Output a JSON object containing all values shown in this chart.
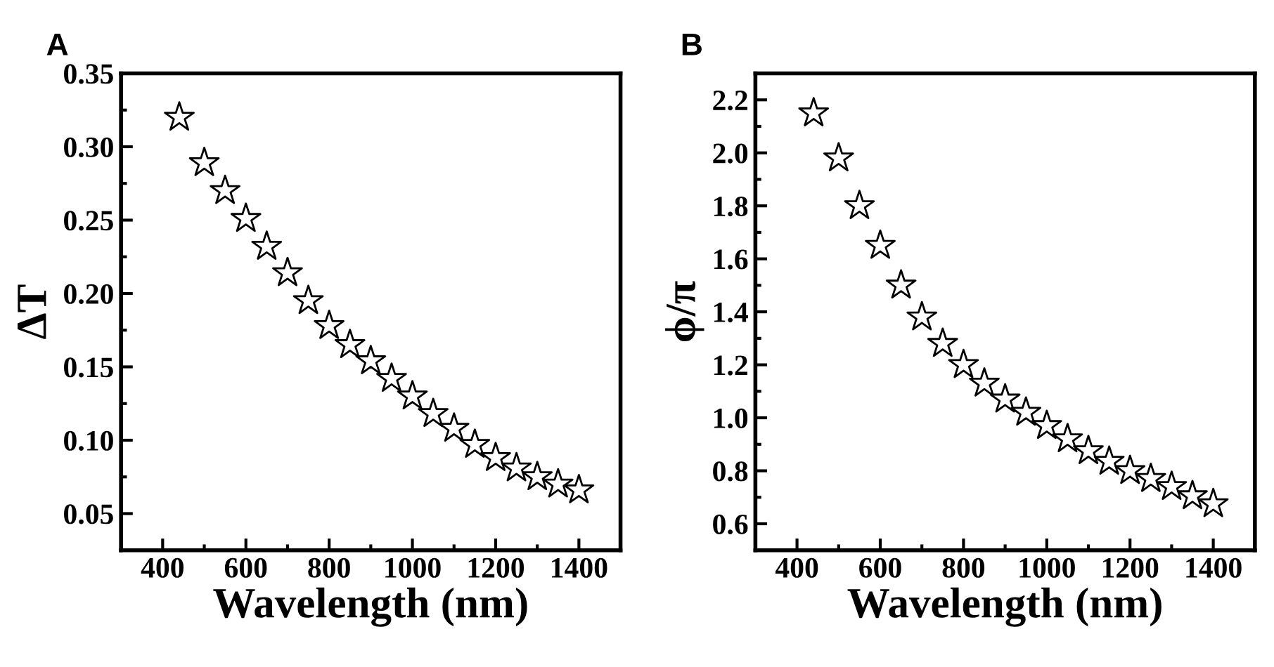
{
  "chart_data": [
    {
      "type": "scatter",
      "title": "A",
      "xlabel": "Wavelength (nm)",
      "ylabel": "ΔT",
      "marker": "star",
      "grid": false,
      "legend": false,
      "xlim": [
        300,
        1500
      ],
      "xticks": [
        400,
        600,
        800,
        1000,
        1200,
        1400
      ],
      "ylim": [
        0.025,
        0.35
      ],
      "yticks": [
        0.05,
        {
          "value": 0.1,
          "label": "0.10"
        },
        0.15,
        {
          "value": 0.2,
          "label": "0.20"
        },
        0.25,
        {
          "value": 0.3,
          "label": "0.30"
        },
        0.35
      ],
      "x": [
        440,
        500,
        550,
        600,
        650,
        700,
        750,
        800,
        850,
        900,
        950,
        1000,
        1050,
        1100,
        1150,
        1200,
        1250,
        1300,
        1350,
        1400
      ],
      "series": [
        {
          "color": "#000000",
          "values": [
            0.32,
            0.289,
            0.27,
            0.251,
            0.232,
            0.214,
            0.195,
            0.178,
            0.165,
            0.154,
            0.142,
            0.13,
            0.118,
            0.108,
            0.097,
            0.088,
            0.081,
            0.075,
            0.07,
            0.066
          ]
        }
      ]
    },
    {
      "type": "scatter",
      "title": "B",
      "xlabel": "Wavelength (nm)",
      "ylabel": "ϕ/π",
      "marker": "star",
      "grid": false,
      "legend": false,
      "xlim": [
        300,
        1500
      ],
      "xticks": [
        400,
        600,
        800,
        1000,
        1200,
        1400
      ],
      "ylim": [
        0.5,
        2.3
      ],
      "yticks": [
        0.6,
        0.8,
        {
          "value": 1,
          "label": "1.0"
        },
        1.2,
        1.4,
        1.6,
        1.8,
        {
          "value": 2,
          "label": "2.0"
        },
        2.2
      ],
      "x": [
        440,
        500,
        550,
        600,
        650,
        700,
        750,
        800,
        850,
        900,
        950,
        1000,
        1050,
        1100,
        1150,
        1200,
        1250,
        1300,
        1350,
        1400
      ],
      "series": [
        {
          "color": "#000000",
          "values": [
            2.15,
            1.98,
            1.8,
            1.65,
            1.5,
            1.38,
            1.28,
            1.2,
            1.13,
            1.07,
            1.02,
            0.97,
            0.92,
            0.875,
            0.835,
            0.8,
            0.77,
            0.74,
            0.705,
            0.675
          ]
        }
      ]
    }
  ]
}
